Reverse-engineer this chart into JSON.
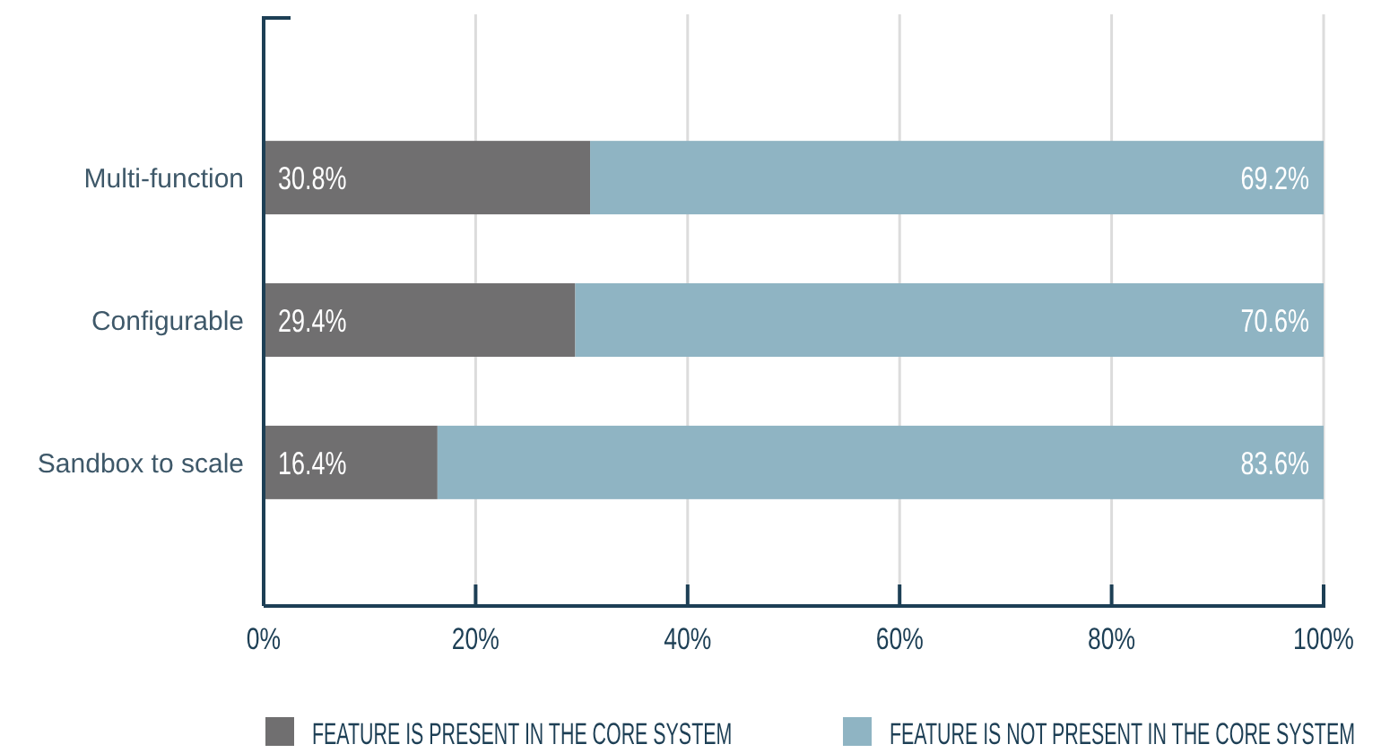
{
  "chart_data": {
    "type": "bar",
    "orientation": "horizontal",
    "stacked": true,
    "categories": [
      "Multi-function",
      "Configurable",
      "Sandbox to scale"
    ],
    "series": [
      {
        "name": "FEATURE IS PRESENT IN THE CORE SYSTEM",
        "color": "#706f70",
        "values": [
          30.8,
          29.4,
          16.4
        ],
        "value_labels": [
          "30.8%",
          "29.4%",
          "16.4%"
        ]
      },
      {
        "name": "FEATURE IS NOT PRESENT IN THE CORE SYSTEM",
        "color": "#8fb4c3",
        "values": [
          69.2,
          70.6,
          83.6
        ],
        "value_labels": [
          "69.2%",
          "70.6%",
          "83.6%"
        ]
      }
    ],
    "xlim": [
      0,
      100
    ],
    "xticks": [
      {
        "value": 0,
        "label": "0%"
      },
      {
        "value": 20,
        "label": "20%"
      },
      {
        "value": 40,
        "label": "40%"
      },
      {
        "value": 60,
        "label": "60%"
      },
      {
        "value": 80,
        "label": "80%"
      },
      {
        "value": 100,
        "label": "100%"
      }
    ],
    "grid": "x",
    "legend": "bottom"
  }
}
